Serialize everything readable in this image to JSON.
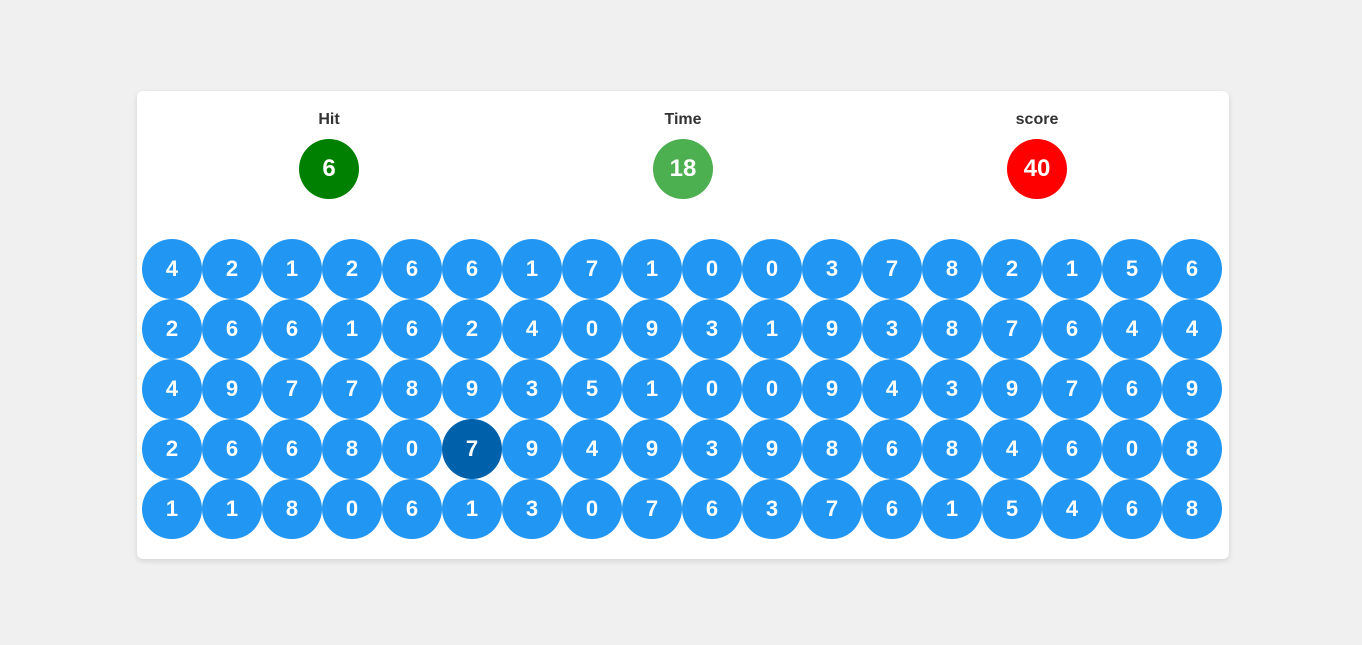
{
  "stats": {
    "hit": {
      "label": "Hit",
      "value": "6",
      "color": "#008000"
    },
    "time": {
      "label": "Time",
      "value": "18",
      "color": "#4caf50"
    },
    "score": {
      "label": "score",
      "value": "40",
      "color": "#ff0000"
    }
  },
  "colors": {
    "bubble": "#2196f3",
    "bubble_highlight": "#0061ab"
  },
  "board": {
    "highlighted": {
      "row": 3,
      "col": 5
    },
    "rows": [
      [
        "4",
        "2",
        "1",
        "2",
        "6",
        "6",
        "1",
        "7",
        "1",
        "0",
        "0",
        "3",
        "7",
        "8",
        "2",
        "1",
        "5",
        "6"
      ],
      [
        "2",
        "6",
        "6",
        "1",
        "6",
        "2",
        "4",
        "0",
        "9",
        "3",
        "1",
        "9",
        "3",
        "8",
        "7",
        "6",
        "4",
        "4"
      ],
      [
        "4",
        "9",
        "7",
        "7",
        "8",
        "9",
        "3",
        "5",
        "1",
        "0",
        "0",
        "9",
        "4",
        "3",
        "9",
        "7",
        "6",
        "9"
      ],
      [
        "2",
        "6",
        "6",
        "8",
        "0",
        "7",
        "9",
        "4",
        "9",
        "3",
        "9",
        "8",
        "6",
        "8",
        "4",
        "6",
        "0",
        "8"
      ],
      [
        "1",
        "1",
        "8",
        "0",
        "6",
        "1",
        "3",
        "0",
        "7",
        "6",
        "3",
        "7",
        "6",
        "1",
        "5",
        "4",
        "6",
        "8"
      ]
    ]
  }
}
